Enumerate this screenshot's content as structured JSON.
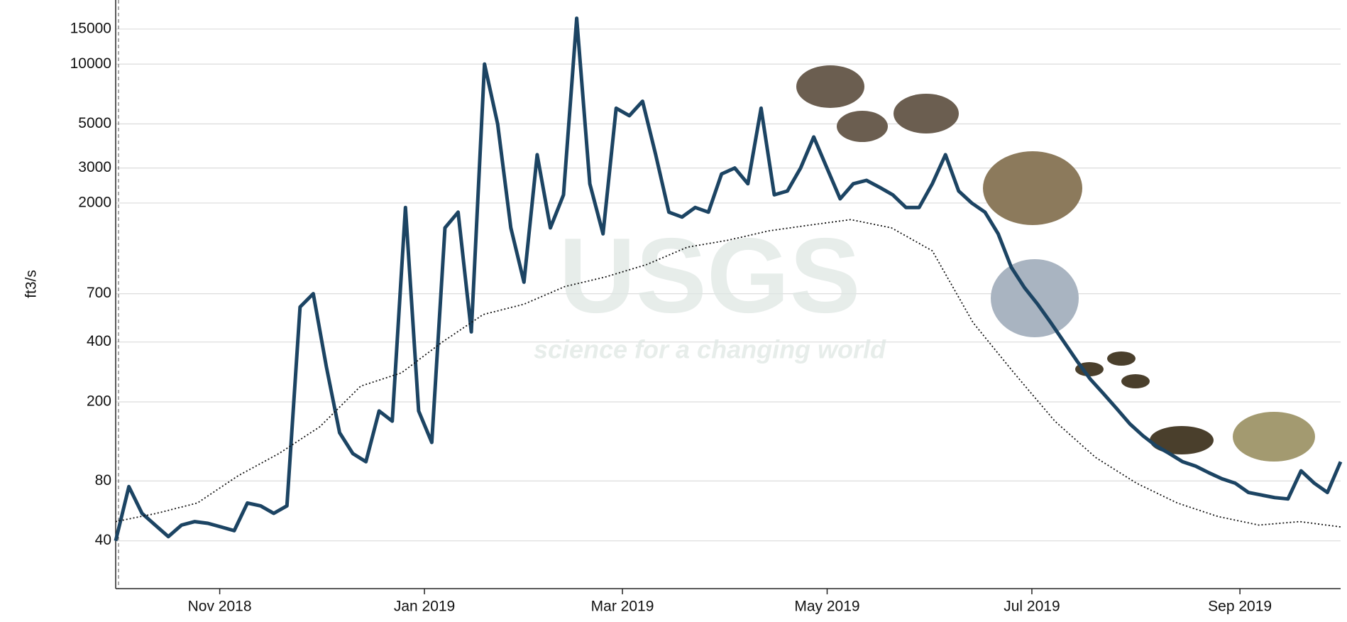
{
  "chart_data": {
    "type": "line",
    "y_label": "ft3/s",
    "y_scale": "log",
    "grid": true,
    "watermark": {
      "logo": "USGS",
      "tagline": "science for a changing world"
    },
    "xlim": [
      "2018-10",
      "2019-10"
    ],
    "xticks": [
      {
        "value": "2018-11",
        "label": "Nov 2018"
      },
      {
        "value": "2019-01",
        "label": "Jan 2019"
      },
      {
        "value": "2019-03",
        "label": "Mar 2019"
      },
      {
        "value": "2019-05",
        "label": "May 2019"
      },
      {
        "value": "2019-07",
        "label": "Jul 2019"
      },
      {
        "value": "2019-09",
        "label": "Sep 2019"
      }
    ],
    "ylim": [
      23,
      21000
    ],
    "yticks": [
      40,
      80,
      200,
      400,
      700,
      2000,
      3000,
      5000,
      10000,
      15000
    ],
    "series": [
      {
        "color": "#1c4463",
        "line_style": "solid",
        "values": [
          40,
          75,
          55,
          48,
          42,
          48,
          50,
          49,
          47,
          45,
          62,
          60,
          55,
          60,
          600,
          700,
          300,
          140,
          110,
          100,
          180,
          160,
          1900,
          180,
          125,
          1500,
          1800,
          450,
          10000,
          5000,
          1500,
          800,
          3500,
          1500,
          2200,
          17000,
          2500,
          1400,
          6000,
          5500,
          6500,
          3500,
          1800,
          1700,
          1900,
          1800,
          2800,
          3000,
          2500,
          6000,
          2200,
          2300,
          3000,
          4300,
          3000,
          2100,
          2500,
          2600,
          2400,
          2200,
          1900,
          1900,
          2500,
          3500,
          2300,
          2000,
          1800,
          1400,
          950,
          750,
          620,
          500,
          400,
          320,
          260,
          220,
          185,
          155,
          135,
          120,
          110,
          100,
          95,
          88,
          82,
          78,
          70,
          68,
          66,
          65,
          90,
          78,
          70,
          100
        ]
      },
      {
        "color": "#111111",
        "line_style": "dotted",
        "values": [
          50,
          55,
          62,
          85,
          110,
          150,
          240,
          280,
          400,
          550,
          620,
          760,
          850,
          980,
          1200,
          1300,
          1450,
          1550,
          1650,
          1500,
          1150,
          500,
          280,
          160,
          105,
          78,
          62,
          53,
          48,
          50,
          47
        ]
      }
    ]
  }
}
